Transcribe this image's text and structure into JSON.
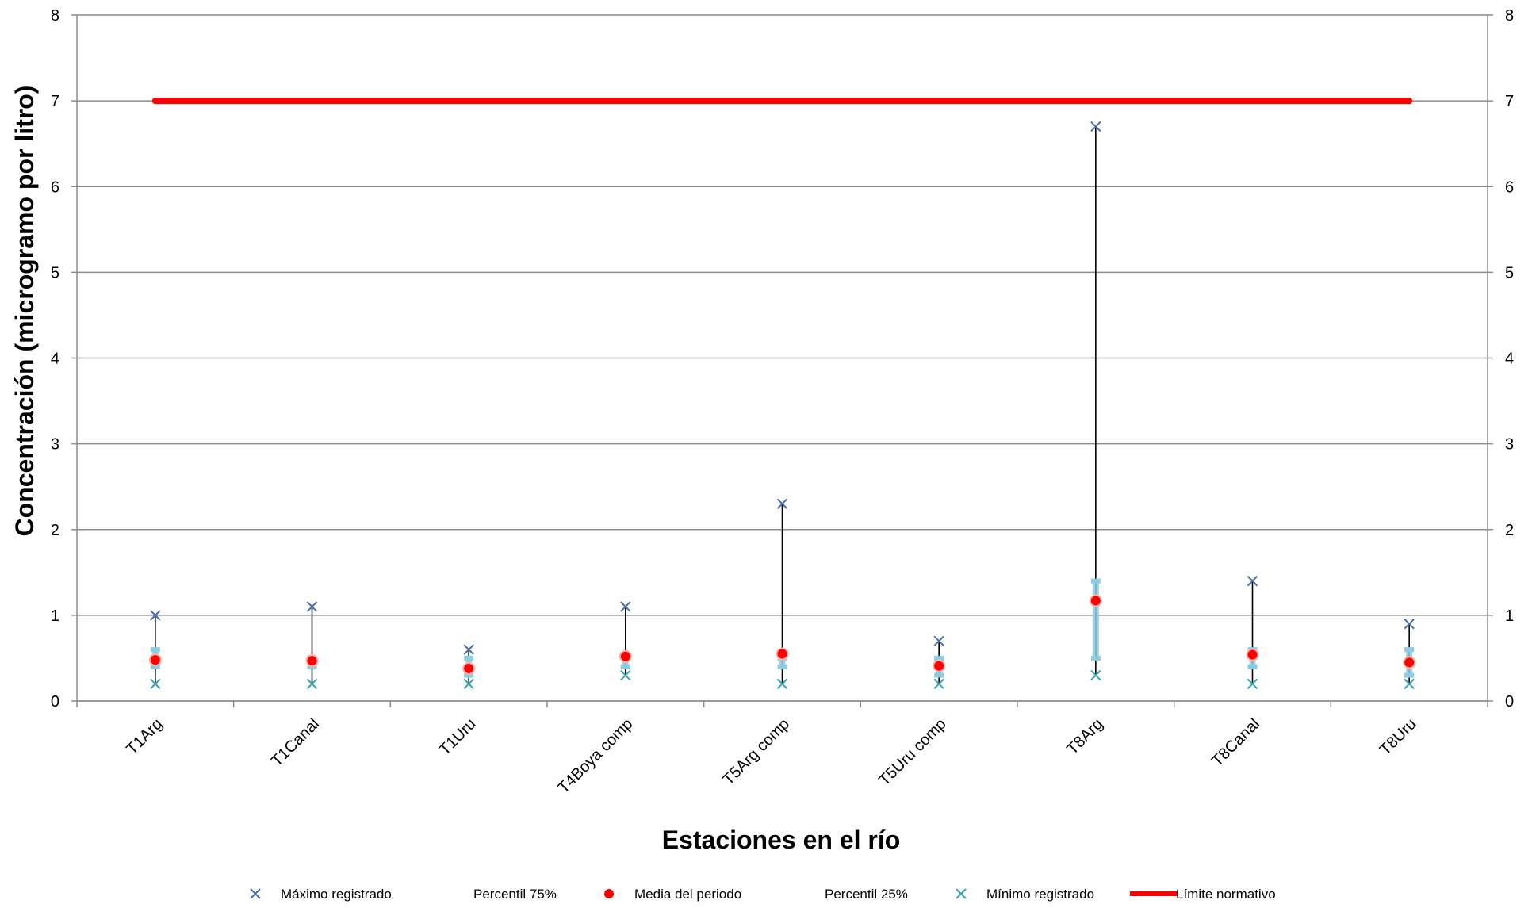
{
  "chart_data": {
    "type": "stock",
    "title": "",
    "xlabel": "Estaciones en el río",
    "ylabel": "Concentración (microgramo por litro)",
    "ylim": [
      0,
      8
    ],
    "yticks": [
      0,
      1,
      2,
      3,
      4,
      5,
      6,
      7,
      8
    ],
    "secondary_y_axis": true,
    "grid": "horizontal",
    "legend_position": "bottom",
    "categories": [
      "T1Arg",
      "T1Canal",
      "T1Uru",
      "T4Boya comp",
      "T5Arg comp",
      "T5Uru comp",
      "T8Arg",
      "T8Canal",
      "T8Uru"
    ],
    "series": [
      {
        "name": "Máximo registrado",
        "marker": "x",
        "color": "#4a6fa8",
        "values": [
          1.0,
          1.1,
          0.6,
          1.1,
          2.3,
          0.7,
          6.7,
          1.4,
          0.9
        ]
      },
      {
        "name": "Percentil 75%",
        "marker": "bar",
        "color": "#8ccbe0",
        "values": [
          0.6,
          0.5,
          0.5,
          0.5,
          0.5,
          0.5,
          1.4,
          0.6,
          0.6
        ]
      },
      {
        "name": "Media del periodo",
        "marker": "circle",
        "color": "#ff0000",
        "values": [
          0.48,
          0.47,
          0.38,
          0.52,
          0.55,
          0.41,
          1.17,
          0.54,
          0.45
        ]
      },
      {
        "name": "Percentil 25%",
        "marker": "bar",
        "color": "#8ccbe0",
        "values": [
          0.4,
          0.4,
          0.3,
          0.4,
          0.4,
          0.3,
          0.5,
          0.4,
          0.3
        ]
      },
      {
        "name": "Mínimo registrado",
        "marker": "x",
        "color": "#3aa6b5",
        "values": [
          0.2,
          0.2,
          0.2,
          0.3,
          0.2,
          0.2,
          0.3,
          0.2,
          0.2
        ]
      },
      {
        "name": "Límite normativo",
        "marker": "line",
        "color": "#ff0000",
        "values": [
          7,
          7,
          7,
          7,
          7,
          7,
          7,
          7,
          7
        ]
      }
    ]
  }
}
